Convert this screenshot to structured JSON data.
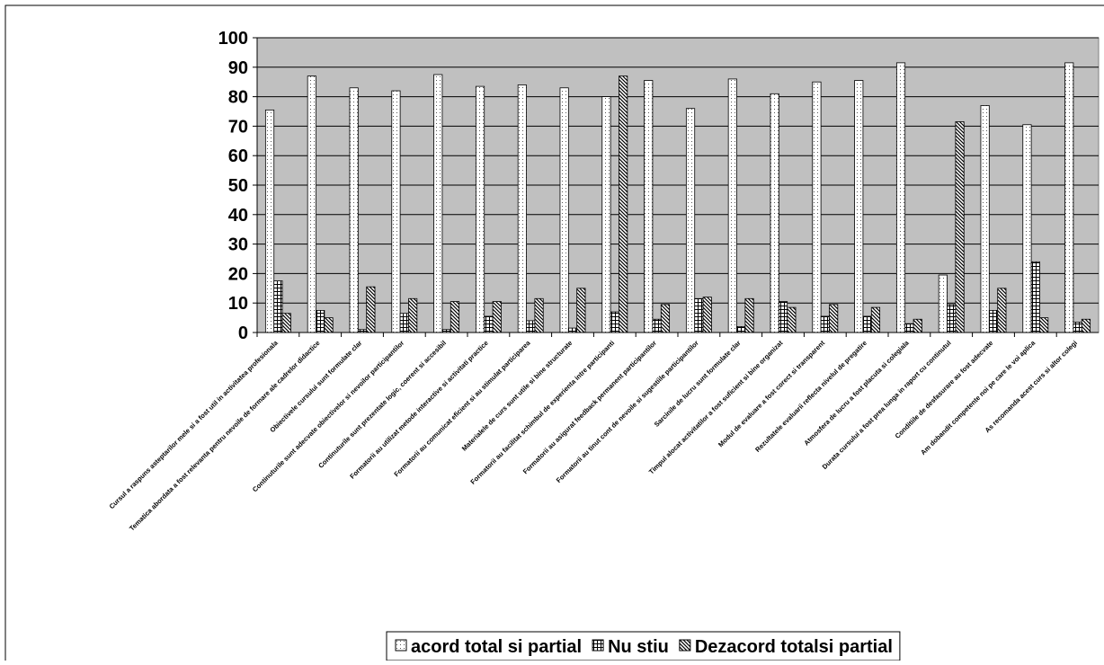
{
  "chart_data": {
    "type": "bar",
    "categories": [
      "Cursul a raspuns asteptarilor mele si a fost util in activitatea profesionala",
      "Tematica abordata a fost relevanta pentru nevoile de formare ale cadrelor didactice",
      "Obiectivele cursului sunt formulate clar",
      "Continuturile sunt adecvate obiectivelor si nevoilor participantilor",
      "Continuturile sunt prezentate logic, coerent si accesibil",
      "Formatorii au utilizat metode interactive si activitati practice",
      "Formatorii au comunicat eficient si au stimulat participarea",
      "Materialele de curs sunt utile si bine structurate",
      "Formatorii au facilitat schimbul de experienta intre participanti",
      "Formatorii au asigurat feedback permanent participantilor",
      "Formatorii au tinut cont de nevoile si sugestiile participantilor",
      "Sarcinile de lucru sunt formulate clar",
      "Timpul alocat activitatilor a fost suficient si bine organizat",
      "Modul de evaluare a fost corect si transparent",
      "Rezultatele evaluarii reflecta nivelul de pregatire",
      "Atmosfera de lucru a fost placuta si colegiala",
      "Durata cursului a fost prea lunga in raport cu continutul",
      "Conditiile de desfasurare au fost adecvate",
      "Am dobandit competente noi pe care le voi aplica",
      "As recomanda acest curs si altor colegi"
    ],
    "series": [
      {
        "name": "acord total si partial",
        "color": "#ffffff",
        "values": [
          75.5,
          87,
          83,
          82,
          87.5,
          83.5,
          84,
          83,
          80,
          85.5,
          76,
          86,
          81,
          85,
          85.5,
          91.5,
          19.5,
          77,
          70.5,
          91.5
        ]
      },
      {
        "name": "Nu stiu",
        "color": "#ffffff",
        "values": [
          17.5,
          7.5,
          1,
          6.5,
          1,
          5.5,
          4,
          1.5,
          7,
          4.5,
          11.5,
          2,
          10.5,
          5.5,
          5.5,
          3,
          9.5,
          7.5,
          24,
          3.5
        ]
      },
      {
        "name": "Dezacord totalsi partial",
        "color": "#ffffff",
        "values": [
          6.5,
          5,
          15.5,
          11.5,
          10.5,
          10.5,
          11.5,
          15,
          87,
          9.5,
          12,
          11.5,
          8.5,
          9.5,
          8.5,
          4.5,
          71.5,
          15,
          5,
          4.5
        ]
      }
    ],
    "ylim": [
      0,
      100
    ],
    "yticks": [
      0,
      10,
      20,
      30,
      40,
      50,
      60,
      70,
      80,
      90,
      100
    ],
    "grid": true,
    "legend": "bottom"
  }
}
